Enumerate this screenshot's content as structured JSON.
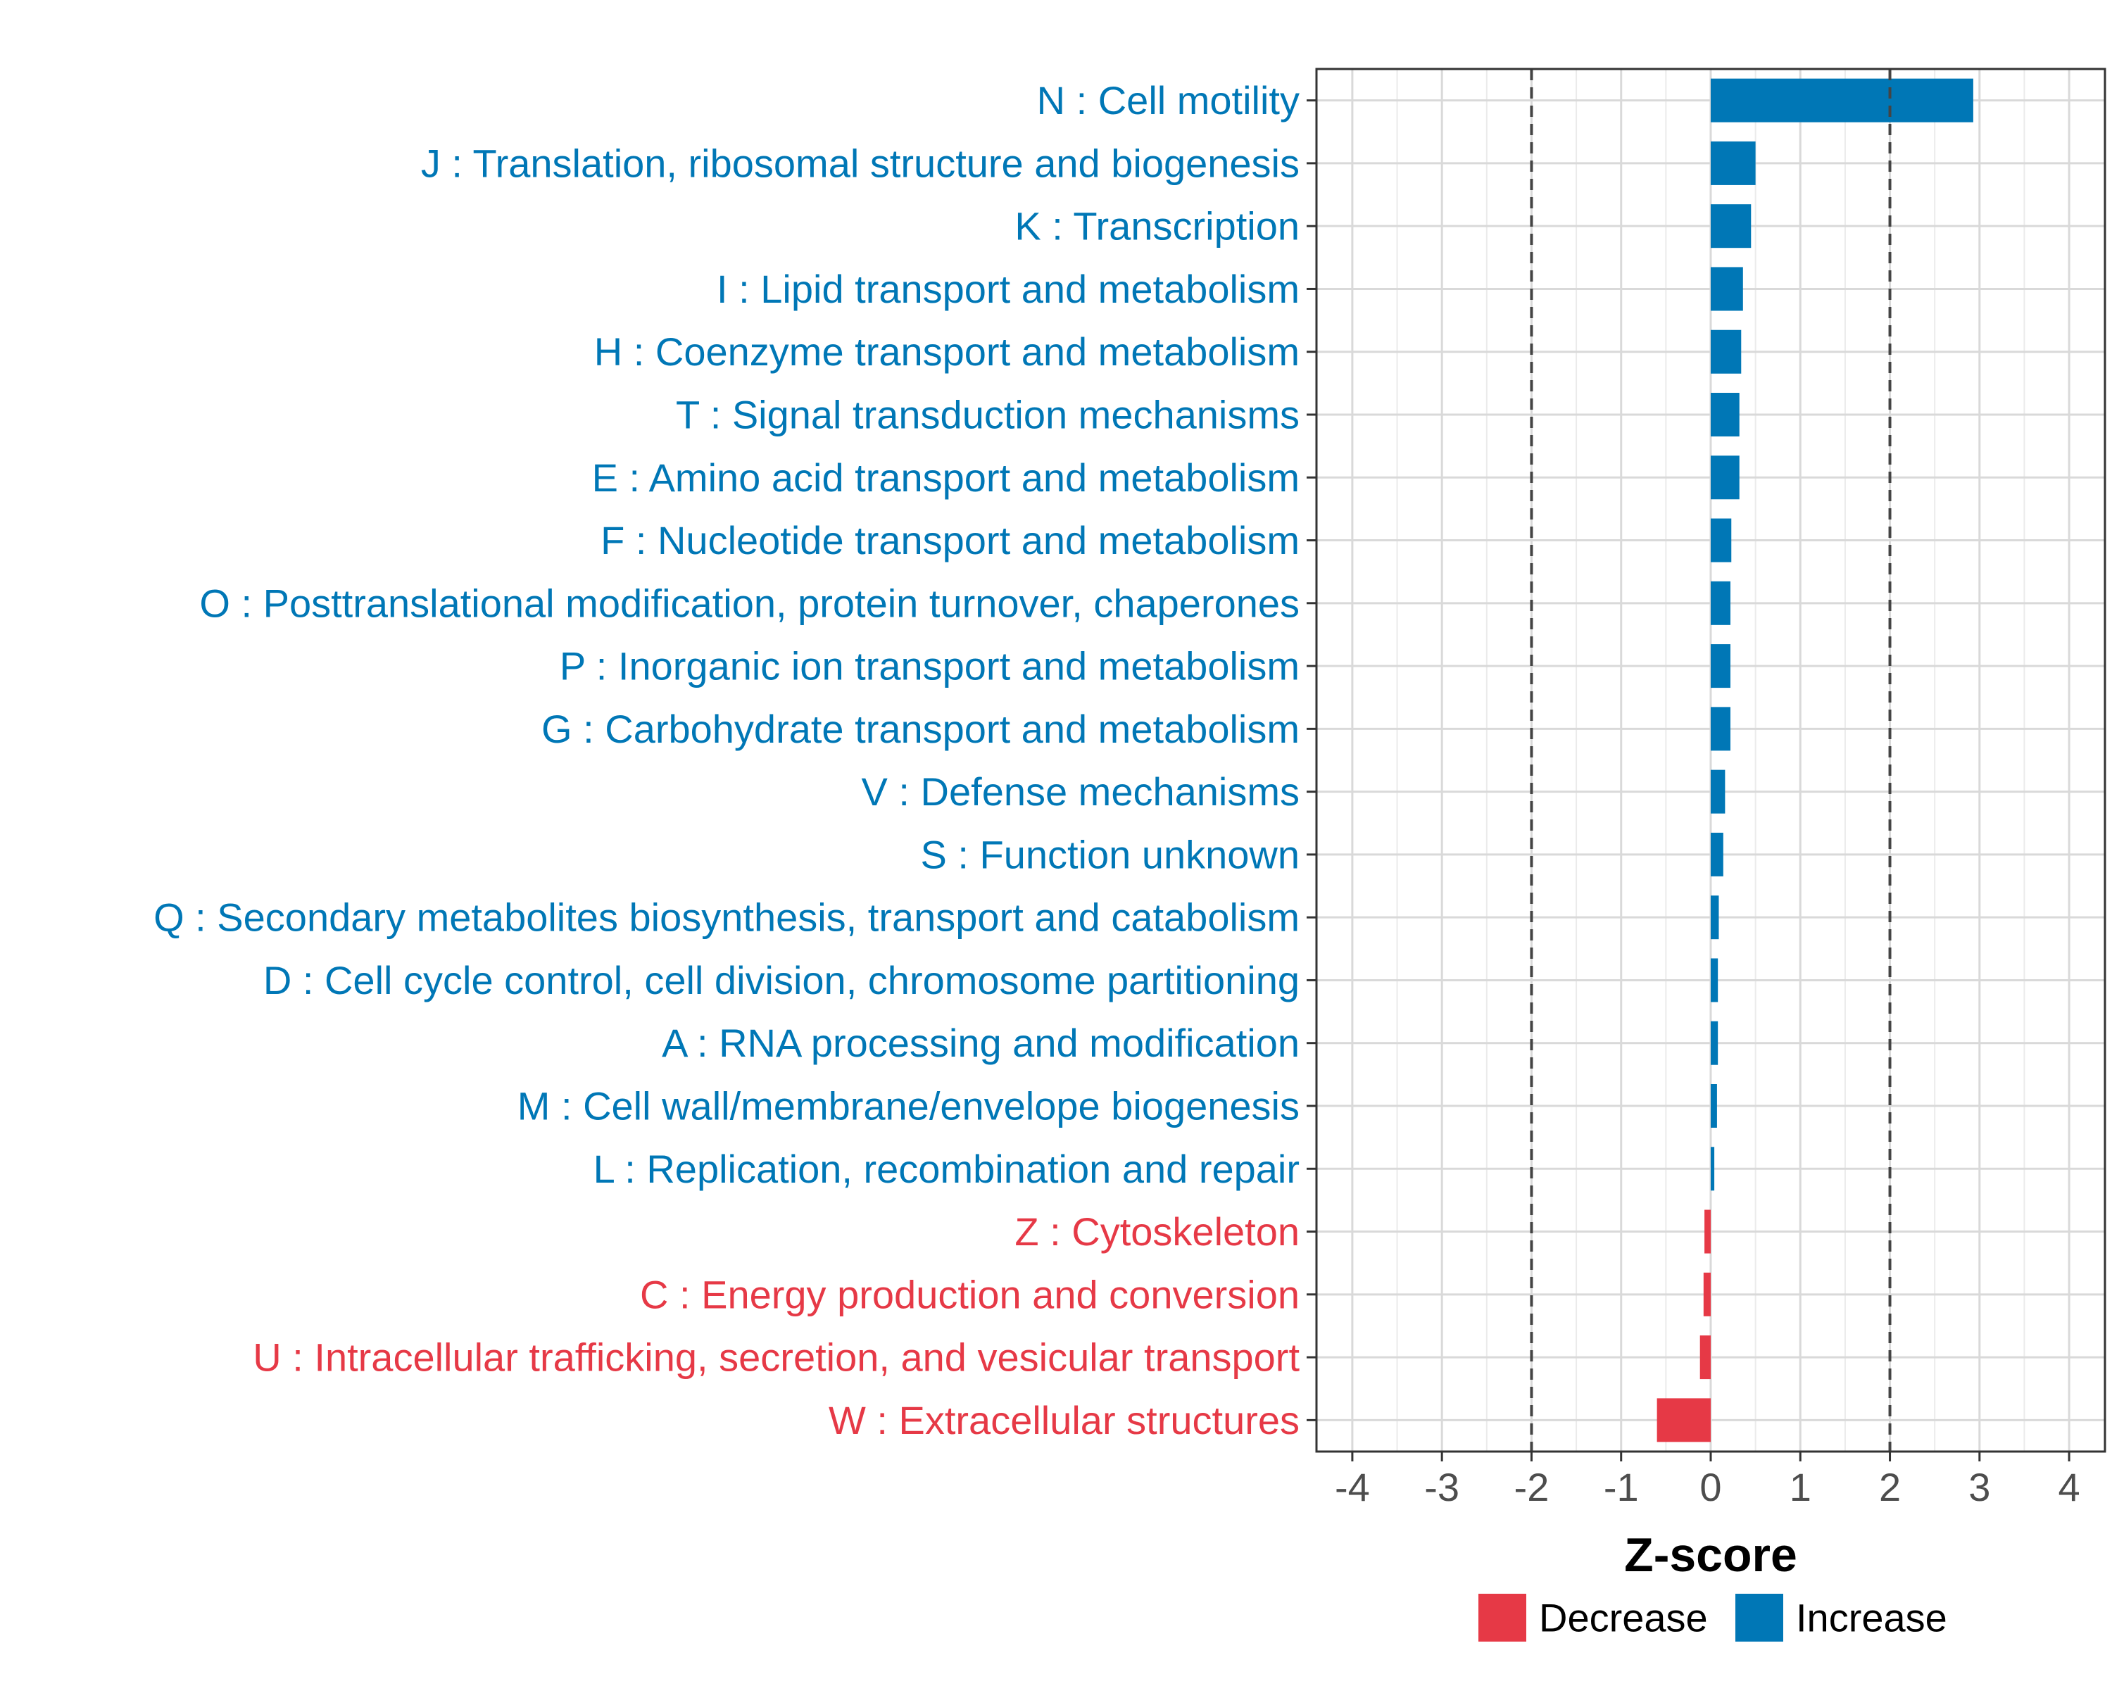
{
  "chart_data": {
    "type": "bar",
    "orientation": "horizontal",
    "xlabel": "Z-score",
    "ylabel": "",
    "xlim": [
      -4.4,
      4.4
    ],
    "xticks": [
      "-4",
      "-3",
      "-2",
      "-1",
      "0",
      "1",
      "2",
      "3",
      "4"
    ],
    "reference_lines": [
      -2,
      2
    ],
    "grid": true,
    "legend_position": "bottom",
    "legend": [
      {
        "label": "Decrease",
        "color": "#E63946"
      },
      {
        "label": "Increase",
        "color": "#0077B6"
      }
    ],
    "categories": [
      "N : Cell motility",
      "J : Translation, ribosomal structure and biogenesis",
      "K : Transcription",
      "I : Lipid transport and metabolism",
      "H : Coenzyme transport and metabolism",
      "T : Signal transduction mechanisms",
      "E : Amino acid transport and metabolism",
      "F : Nucleotide transport and metabolism",
      "O : Posttranslational modification, protein turnover, chaperones",
      "P : Inorganic ion transport and metabolism",
      "G : Carbohydrate transport and metabolism",
      "V : Defense mechanisms",
      "S : Function unknown",
      "Q : Secondary metabolites biosynthesis, transport and catabolism",
      "D : Cell cycle control, cell division, chromosome partitioning",
      "A : RNA processing and modification",
      "M : Cell wall/membrane/envelope biogenesis",
      "L : Replication, recombination and repair",
      "Z : Cytoskeleton",
      "C : Energy production and conversion",
      "U : Intracellular trafficking, secretion, and vesicular transport",
      "W : Extracellular structures"
    ],
    "values": [
      2.93,
      0.5,
      0.45,
      0.36,
      0.34,
      0.32,
      0.32,
      0.23,
      0.22,
      0.22,
      0.22,
      0.16,
      0.14,
      0.09,
      0.08,
      0.08,
      0.07,
      0.04,
      -0.07,
      -0.08,
      -0.12,
      -0.6
    ],
    "groups": [
      "Increase",
      "Increase",
      "Increase",
      "Increase",
      "Increase",
      "Increase",
      "Increase",
      "Increase",
      "Increase",
      "Increase",
      "Increase",
      "Increase",
      "Increase",
      "Increase",
      "Increase",
      "Increase",
      "Increase",
      "Increase",
      "Decrease",
      "Decrease",
      "Decrease",
      "Decrease"
    ]
  }
}
